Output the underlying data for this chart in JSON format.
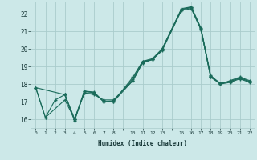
{
  "xlabel": "Humidex (Indice chaleur)",
  "ylabel": "",
  "bg_color": "#cce8e8",
  "grid_color": "#aacccc",
  "line_color": "#1a6b5a",
  "xmin": -0.5,
  "xmax": 22.5,
  "ymin": 15.5,
  "ymax": 22.7,
  "yticks": [
    16,
    17,
    18,
    19,
    20,
    21,
    22
  ],
  "xtick_positions": [
    0,
    1,
    2,
    3,
    4,
    5,
    6,
    7,
    8,
    9,
    10,
    11,
    12,
    13,
    14,
    15,
    16,
    17,
    18,
    19,
    20,
    21,
    22
  ],
  "xtick_labels": [
    "0",
    "1",
    "2",
    "3",
    "4",
    "5",
    "6",
    "7",
    "8",
    "",
    "10",
    "11",
    "12",
    "13",
    "",
    "15",
    "16",
    "17",
    "18",
    "19",
    "20",
    "21",
    "22"
  ],
  "series": [
    {
      "x": [
        0,
        1,
        2,
        3,
        4,
        5,
        6,
        7,
        8,
        10,
        11,
        12,
        13,
        15,
        16,
        17,
        18,
        19,
        20,
        21,
        22
      ],
      "y": [
        17.8,
        16.1,
        17.1,
        17.4,
        15.9,
        17.6,
        17.5,
        17.0,
        17.0,
        18.4,
        19.3,
        19.4,
        20.0,
        22.3,
        22.4,
        21.2,
        18.5,
        18.0,
        18.2,
        18.4,
        18.2
      ]
    },
    {
      "x": [
        0,
        1,
        3,
        4,
        5,
        6,
        7,
        8,
        10,
        11,
        12,
        13,
        15,
        16,
        17,
        18,
        19,
        20,
        21,
        22
      ],
      "y": [
        17.8,
        16.1,
        17.1,
        16.0,
        17.5,
        17.5,
        17.0,
        17.0,
        18.2,
        19.2,
        19.4,
        19.9,
        22.2,
        22.3,
        21.1,
        18.4,
        18.0,
        18.1,
        18.3,
        18.1
      ]
    },
    {
      "x": [
        0,
        3,
        4,
        5,
        6,
        7,
        8,
        10,
        11,
        12,
        13,
        15,
        16,
        17,
        18,
        19,
        20,
        21,
        22
      ],
      "y": [
        17.8,
        17.4,
        16.0,
        17.6,
        17.55,
        17.0,
        17.05,
        18.3,
        19.3,
        19.45,
        20.0,
        22.25,
        22.4,
        21.15,
        18.4,
        18.05,
        18.15,
        18.35,
        18.15
      ]
    },
    {
      "x": [
        3,
        4,
        5,
        6,
        7,
        8,
        10,
        11,
        12,
        13,
        15,
        16,
        17,
        18,
        19,
        20,
        21,
        22
      ],
      "y": [
        17.4,
        16.0,
        17.5,
        17.4,
        17.1,
        17.1,
        18.2,
        19.25,
        19.4,
        19.95,
        22.25,
        22.35,
        21.1,
        18.45,
        18.05,
        18.15,
        18.35,
        18.15
      ]
    }
  ]
}
